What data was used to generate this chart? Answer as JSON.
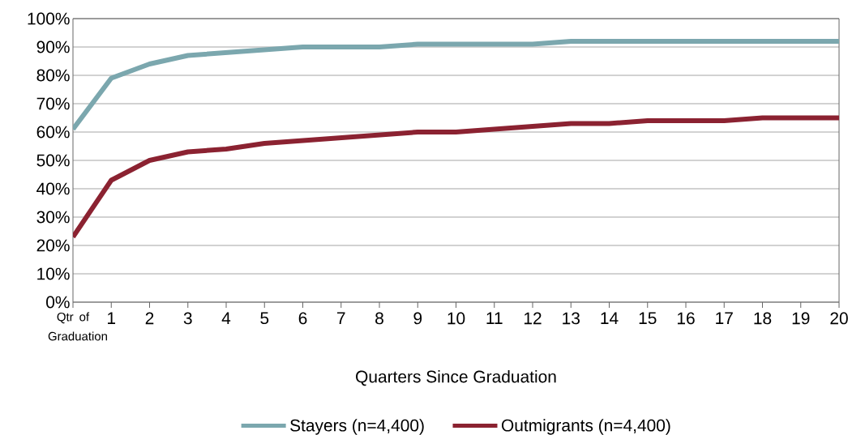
{
  "chart_data": {
    "type": "line",
    "xlabel": "Quarters Since Graduation",
    "categories": [
      "Qtr of Graduation",
      "1",
      "2",
      "3",
      "4",
      "5",
      "6",
      "7",
      "8",
      "9",
      "10",
      "11",
      "12",
      "13",
      "14",
      "15",
      "16",
      "17",
      "18",
      "19",
      "20"
    ],
    "series": [
      {
        "name": "Stayers (n=4,400)",
        "color": "#7ba7ae",
        "values": [
          61,
          79,
          84,
          87,
          88,
          89,
          90,
          90,
          90,
          91,
          91,
          91,
          91,
          92,
          92,
          92,
          92,
          92,
          92,
          92,
          92
        ]
      },
      {
        "name": "Outmigrants (n=4,400)",
        "color": "#8b2231",
        "values": [
          23,
          43,
          50,
          53,
          54,
          56,
          57,
          58,
          59,
          60,
          60,
          61,
          62,
          63,
          63,
          64,
          64,
          64,
          65,
          65,
          65
        ]
      }
    ],
    "ylim": [
      0,
      100
    ],
    "yticks": [
      {
        "value": 0,
        "label": "0%"
      },
      {
        "value": 10,
        "label": "10%"
      },
      {
        "value": 20,
        "label": "20%"
      },
      {
        "value": 30,
        "label": "30%"
      },
      {
        "value": 40,
        "label": "40%"
      },
      {
        "value": 50,
        "label": "50%"
      },
      {
        "value": 60,
        "label": "60%"
      },
      {
        "value": 70,
        "label": "70%"
      },
      {
        "value": 80,
        "label": "80%"
      },
      {
        "value": 90,
        "label": "90%"
      },
      {
        "value": 100,
        "label": "100%"
      }
    ],
    "grid": "y",
    "legend": "bottom",
    "marker": "none",
    "line_style": "solid"
  }
}
